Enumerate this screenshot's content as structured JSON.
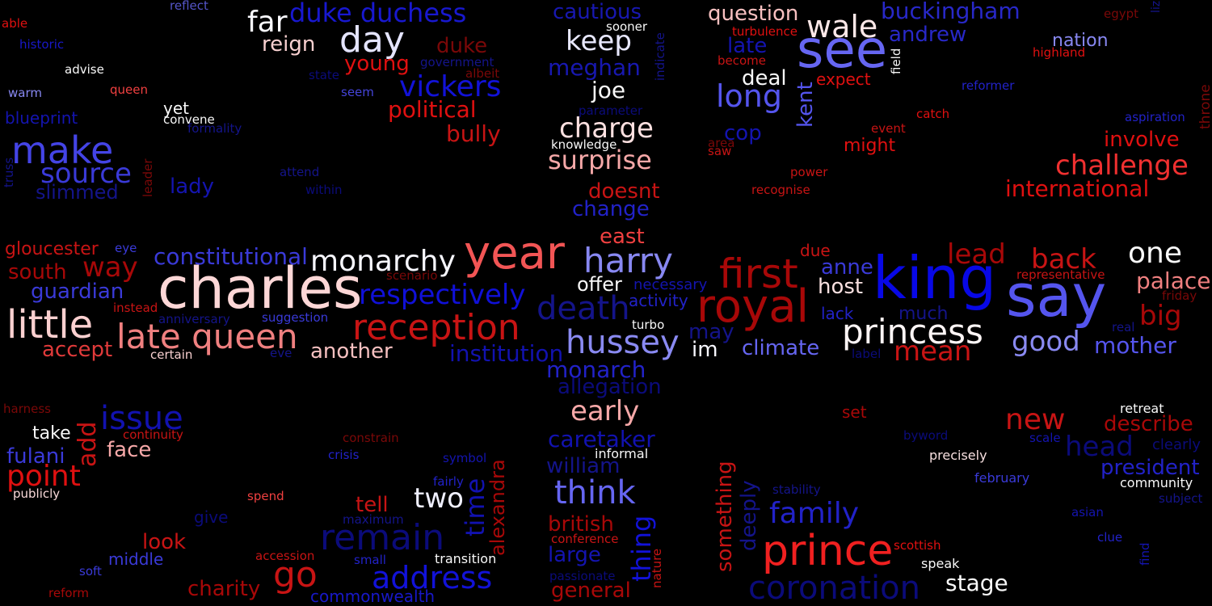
{
  "words": [
    {
      "text": "charles",
      "color": "#fdd7d7"
    },
    {
      "text": "king",
      "color": "#0808e6"
    },
    {
      "text": "say",
      "color": "#5555ee"
    },
    {
      "text": "year",
      "color": "#f25555"
    },
    {
      "text": "royal",
      "color": "#a80808"
    },
    {
      "text": "see",
      "color": "#6666f2"
    },
    {
      "text": "first",
      "color": "#a80808"
    },
    {
      "text": "princess",
      "color": "#fdf5f5"
    },
    {
      "text": "prince",
      "color": "#f02020"
    },
    {
      "text": "harry",
      "color": "#8888f2"
    },
    {
      "text": "monarchy",
      "color": "#f7f7ff"
    },
    {
      "text": "reception",
      "color": "#c81414"
    },
    {
      "text": "late queen",
      "color": "#f08080"
    },
    {
      "text": "little",
      "color": "#fbd0d0"
    },
    {
      "text": "make",
      "color": "#4444e6"
    },
    {
      "text": "day",
      "color": "#e4e4ff"
    },
    {
      "text": "remain",
      "color": "#0b0b7a"
    },
    {
      "text": "coronation",
      "color": "#0b0b7a"
    },
    {
      "text": "death",
      "color": "#14148a"
    },
    {
      "text": "respectively",
      "color": "#1010d8"
    },
    {
      "text": "address",
      "color": "#1212d8"
    },
    {
      "text": "go",
      "color": "#c81414"
    },
    {
      "text": "hussey",
      "color": "#8a8af2"
    },
    {
      "text": "think",
      "color": "#6666f2"
    },
    {
      "text": "family",
      "color": "#2222c8"
    },
    {
      "text": "long",
      "color": "#5555ee"
    },
    {
      "text": "wale",
      "color": "#fde8e8"
    },
    {
      "text": "one",
      "color": "#f8f8f8"
    },
    {
      "text": "back",
      "color": "#c81414"
    },
    {
      "text": "new",
      "color": "#c81414"
    },
    {
      "text": "issue",
      "color": "#1212b0"
    },
    {
      "text": "point",
      "color": "#e01010"
    },
    {
      "text": "surprise",
      "color": "#f6a8a8"
    },
    {
      "text": "charge",
      "color": "#fde0e0"
    },
    {
      "text": "challenge",
      "color": "#f03030"
    },
    {
      "text": "vickers",
      "color": "#1212d8"
    },
    {
      "text": "duke duchess",
      "color": "#1818d0"
    },
    {
      "text": "early",
      "color": "#f6a8a8"
    },
    {
      "text": "two",
      "color": "#f0f0ff"
    },
    {
      "text": "lead",
      "color": "#a80808"
    },
    {
      "text": "mean",
      "color": "#c81414"
    },
    {
      "text": "good",
      "color": "#8a8af2"
    },
    {
      "text": "big",
      "color": "#a80808"
    },
    {
      "text": "keep",
      "color": "#e8e8ff"
    },
    {
      "text": "source",
      "color": "#3a3ad8"
    },
    {
      "text": "way",
      "color": "#a80808"
    },
    {
      "text": "far",
      "color": "#fafaff"
    },
    {
      "text": "constitutional",
      "color": "#3a3ad8"
    },
    {
      "text": "institution",
      "color": "#1212b0"
    },
    {
      "text": "monarch",
      "color": "#2222c8"
    },
    {
      "text": "caretaker",
      "color": "#1212b0"
    },
    {
      "text": "international",
      "color": "#e01010"
    },
    {
      "text": "palace",
      "color": "#f08080"
    },
    {
      "text": "mother",
      "color": "#5555ee"
    },
    {
      "text": "buckingham",
      "color": "#2828c8"
    },
    {
      "text": "meghan",
      "color": "#1818b0"
    },
    {
      "text": "political",
      "color": "#e01010"
    },
    {
      "text": "bully",
      "color": "#c81414"
    },
    {
      "text": "question",
      "color": "#f8c0c0"
    },
    {
      "text": "another",
      "color": "#f6c0c0"
    },
    {
      "text": "climate",
      "color": "#6666f2"
    },
    {
      "text": "stage",
      "color": "#f8f8f8"
    },
    {
      "text": "cautious",
      "color": "#1818b0"
    },
    {
      "text": "andrew",
      "color": "#2828c8"
    },
    {
      "text": "guardian",
      "color": "#3a3ad8"
    },
    {
      "text": "south",
      "color": "#a80808"
    },
    {
      "text": "involve",
      "color": "#e01010"
    },
    {
      "text": "describe",
      "color": "#a80808"
    },
    {
      "text": "head",
      "color": "#0b0b7a"
    },
    {
      "text": "president",
      "color": "#2222c8"
    },
    {
      "text": "accept",
      "color": "#e03a3a"
    },
    {
      "text": "reign",
      "color": "#f8d0d0"
    },
    {
      "text": "young",
      "color": "#e01010"
    },
    {
      "text": "duke",
      "color": "#7a0808"
    },
    {
      "text": "doesnt",
      "color": "#c81414"
    },
    {
      "text": "change",
      "color": "#2222c8"
    },
    {
      "text": "east",
      "color": "#f04040"
    },
    {
      "text": "joe",
      "color": "#f8f8f8"
    },
    {
      "text": "host",
      "color": "#f8e0e0"
    },
    {
      "text": "anne",
      "color": "#3a3ad8"
    },
    {
      "text": "deal",
      "color": "#f8f8f8"
    },
    {
      "text": "late",
      "color": "#1414b0"
    },
    {
      "text": "cop",
      "color": "#1414b0"
    },
    {
      "text": "offer",
      "color": "#f8f8f8"
    },
    {
      "text": "im",
      "color": "#f8f8ff"
    },
    {
      "text": "may",
      "color": "#14148a"
    },
    {
      "text": "tell",
      "color": "#c81414"
    },
    {
      "text": "look",
      "color": "#c81414"
    },
    {
      "text": "charity",
      "color": "#a80808"
    },
    {
      "text": "face",
      "color": "#f6a8a8"
    },
    {
      "text": "william",
      "color": "#14148a"
    },
    {
      "text": "british",
      "color": "#a80808"
    },
    {
      "text": "large",
      "color": "#1414b0"
    },
    {
      "text": "general",
      "color": "#a80808"
    },
    {
      "text": "lady",
      "color": "#1414b0"
    },
    {
      "text": "slimmed",
      "color": "#14148a"
    },
    {
      "text": "fulani",
      "color": "#3a3ad8"
    },
    {
      "text": "allegation",
      "color": "#0b0b7a"
    },
    {
      "text": "take",
      "color": "#f8f8f8"
    },
    {
      "text": "gloucester",
      "color": "#c81414"
    },
    {
      "text": "nation",
      "color": "#8888f2"
    },
    {
      "text": "lack",
      "color": "#2222c8"
    },
    {
      "text": "might",
      "color": "#e01010"
    },
    {
      "text": "much",
      "color": "#14148a"
    },
    {
      "text": "expect",
      "color": "#e01010"
    },
    {
      "text": "activity",
      "color": "#2222c8"
    },
    {
      "text": "necessary",
      "color": "#1414b0"
    },
    {
      "text": "middle",
      "color": "#3a3ad8"
    },
    {
      "text": "commonwealth",
      "color": "#1818c8"
    },
    {
      "text": "set",
      "color": "#a80808"
    },
    {
      "text": "due",
      "color": "#c81414"
    },
    {
      "text": "yet",
      "color": "#f8f8f8"
    },
    {
      "text": "blueprint",
      "color": "#1414b0"
    },
    {
      "text": "precisely",
      "color": "#f8e0e0"
    },
    {
      "text": "retreat",
      "color": "#f8f8f8"
    },
    {
      "text": "community",
      "color": "#f8f8f8"
    },
    {
      "text": "february",
      "color": "#3a3ad8"
    },
    {
      "text": "speak",
      "color": "#f8f8f8"
    },
    {
      "text": "transition",
      "color": "#f8f8f8"
    },
    {
      "text": "informal",
      "color": "#f8f8f8"
    },
    {
      "text": "knowledge",
      "color": "#f8f8f8"
    },
    {
      "text": "sooner",
      "color": "#f8f8f8"
    },
    {
      "text": "convene",
      "color": "#f8f8f8"
    },
    {
      "text": "advise",
      "color": "#f8f8f8"
    },
    {
      "text": "publicly",
      "color": "#f8d8d8"
    },
    {
      "text": "certain",
      "color": "#f8d0d0"
    },
    {
      "text": "queen",
      "color": "#f04040"
    },
    {
      "text": "warm",
      "color": "#8888f2"
    },
    {
      "text": "historic",
      "color": "#1818c8"
    },
    {
      "text": "reflect",
      "color": "#5555c8"
    },
    {
      "text": "able",
      "color": "#e01010"
    },
    {
      "text": "seem",
      "color": "#4444d8"
    },
    {
      "text": "state",
      "color": "#0b0b7a"
    },
    {
      "text": "government",
      "color": "#14148a"
    },
    {
      "text": "albeit",
      "color": "#7a0808"
    },
    {
      "text": "parameter",
      "color": "#0b0b7a"
    },
    {
      "text": "formality",
      "color": "#14148a"
    },
    {
      "text": "attend",
      "color": "#14148a"
    },
    {
      "text": "within",
      "color": "#0b0b7a"
    },
    {
      "text": "eye",
      "color": "#3a3ad8"
    },
    {
      "text": "instead",
      "color": "#c81414"
    },
    {
      "text": "suggestion",
      "color": "#3a3ad8"
    },
    {
      "text": "anniversary",
      "color": "#14148a"
    },
    {
      "text": "eve",
      "color": "#14148a"
    },
    {
      "text": "scenario",
      "color": "#7a0808"
    },
    {
      "text": "turbo",
      "color": "#f8f8f8"
    },
    {
      "text": "label",
      "color": "#0b0b7a"
    },
    {
      "text": "area",
      "color": "#7a0808"
    },
    {
      "text": "saw",
      "color": "#c81414"
    },
    {
      "text": "event",
      "color": "#c81414"
    },
    {
      "text": "catch",
      "color": "#e01010"
    },
    {
      "text": "power",
      "color": "#c81414"
    },
    {
      "text": "recognise",
      "color": "#c81414"
    },
    {
      "text": "become",
      "color": "#c81414"
    },
    {
      "text": "turbulence",
      "color": "#e01010"
    },
    {
      "text": "egypt",
      "color": "#7a0808"
    },
    {
      "text": "highland",
      "color": "#e01010"
    },
    {
      "text": "reformer",
      "color": "#2222c8"
    },
    {
      "text": "aspiration",
      "color": "#2222c8"
    },
    {
      "text": "representative",
      "color": "#c81414"
    },
    {
      "text": "friday",
      "color": "#7a0808"
    },
    {
      "text": "real",
      "color": "#14148a"
    },
    {
      "text": "byword",
      "color": "#0b0b7a"
    },
    {
      "text": "scale",
      "color": "#1414b0"
    },
    {
      "text": "clearly",
      "color": "#0b0b7a"
    },
    {
      "text": "subject",
      "color": "#14148a"
    },
    {
      "text": "asian",
      "color": "#1414b0"
    },
    {
      "text": "clue",
      "color": "#2222c8"
    },
    {
      "text": "scottish",
      "color": "#e01010"
    },
    {
      "text": "stability",
      "color": "#14148a"
    },
    {
      "text": "harness",
      "color": "#7a0808"
    },
    {
      "text": "continuity",
      "color": "#c81414"
    },
    {
      "text": "constrain",
      "color": "#7a0808"
    },
    {
      "text": "crisis",
      "color": "#2222c8"
    },
    {
      "text": "symbol",
      "color": "#1414b0"
    },
    {
      "text": "fairly",
      "color": "#2222c8"
    },
    {
      "text": "spend",
      "color": "#f04040"
    },
    {
      "text": "give",
      "color": "#0b0b7a"
    },
    {
      "text": "maximum",
      "color": "#14148a"
    },
    {
      "text": "small",
      "color": "#2222c8"
    },
    {
      "text": "accession",
      "color": "#c81414"
    },
    {
      "text": "soft",
      "color": "#3a3ad8"
    },
    {
      "text": "reform",
      "color": "#a80808"
    },
    {
      "text": "conference",
      "color": "#c81414"
    },
    {
      "text": "passionate",
      "color": "#0b0b7a"
    },
    {
      "text": "liz",
      "color": "#14148a"
    },
    {
      "text": "add",
      "color": "#c81414"
    },
    {
      "text": "time",
      "color": "#1212b0"
    },
    {
      "text": "alexandra",
      "color": "#a80808"
    },
    {
      "text": "thing",
      "color": "#1212d8"
    },
    {
      "text": "nature",
      "color": "#c81414"
    },
    {
      "text": "something",
      "color": "#c81414"
    },
    {
      "text": "deeply",
      "color": "#14148a"
    },
    {
      "text": "kent",
      "color": "#5555ee"
    },
    {
      "text": "field",
      "color": "#f8f8f8"
    },
    {
      "text": "indicate",
      "color": "#14148a"
    },
    {
      "text": "truss",
      "color": "#14148a"
    },
    {
      "text": "leader",
      "color": "#7a0808"
    },
    {
      "text": "throne",
      "color": "#7a0808"
    },
    {
      "text": "find",
      "color": "#1414b0"
    }
  ]
}
